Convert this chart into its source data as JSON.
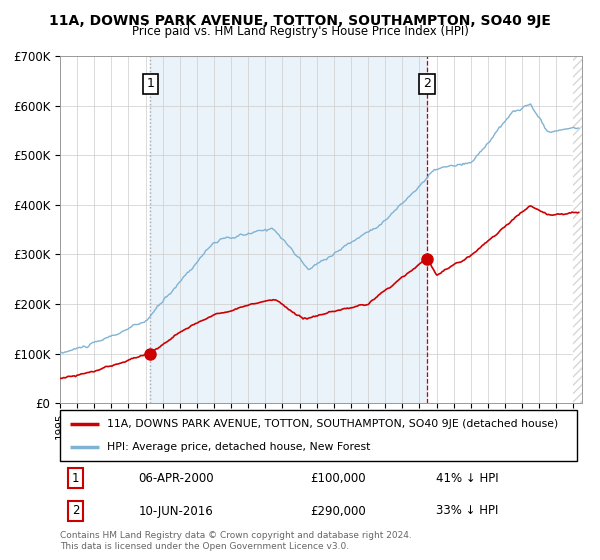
{
  "title": "11A, DOWNS PARK AVENUE, TOTTON, SOUTHAMPTON, SO40 9JE",
  "subtitle": "Price paid vs. HM Land Registry's House Price Index (HPI)",
  "background_color": "#ffffff",
  "grid_color": "#cccccc",
  "hpi_color": "#7fb3d3",
  "hpi_fill_color": "#d6e8f5",
  "price_color": "#cc0000",
  "sale1_vline_color": "#aaaaaa",
  "sale2_vline_color": "#cc0000",
  "ylim": [
    0,
    700000
  ],
  "yticks": [
    0,
    100000,
    200000,
    300000,
    400000,
    500000,
    600000,
    700000
  ],
  "ytick_labels": [
    "£0",
    "£100K",
    "£200K",
    "£300K",
    "£400K",
    "£500K",
    "£600K",
    "£700K"
  ],
  "xlim_start": 1995,
  "xlim_end": 2025.5,
  "sale1_year": 2000.27,
  "sale1_price": 100000,
  "sale1_label": "1",
  "sale2_year": 2016.44,
  "sale2_price": 290000,
  "sale2_label": "2",
  "legend_line1": "11A, DOWNS PARK AVENUE, TOTTON, SOUTHAMPTON, SO40 9JE (detached house)",
  "legend_line2": "HPI: Average price, detached house, New Forest",
  "table_row1_num": "1",
  "table_row1_date": "06-APR-2000",
  "table_row1_price": "£100,000",
  "table_row1_hpi": "41% ↓ HPI",
  "table_row2_num": "2",
  "table_row2_date": "10-JUN-2016",
  "table_row2_price": "£290,000",
  "table_row2_hpi": "33% ↓ HPI",
  "footer": "Contains HM Land Registry data © Crown copyright and database right 2024.\nThis data is licensed under the Open Government Licence v3.0."
}
